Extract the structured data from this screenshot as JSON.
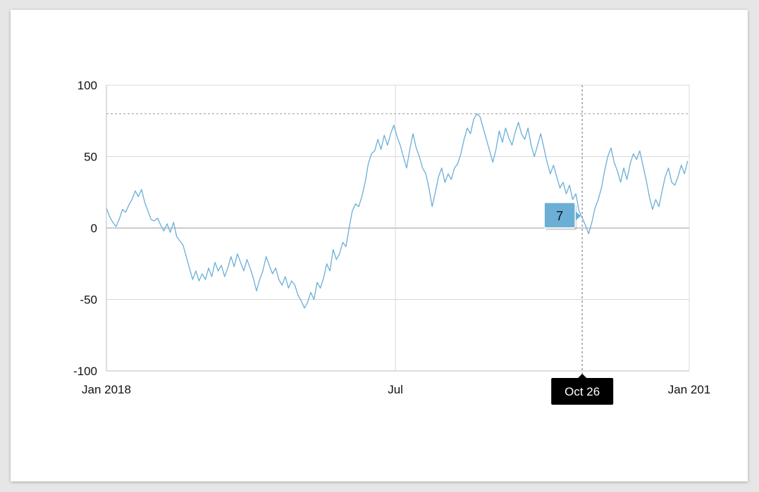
{
  "chart_data": {
    "type": "line",
    "title": "",
    "xlabel": "",
    "ylabel": "",
    "xlim": [
      "2018-01-01",
      "2019-01-01"
    ],
    "ylim": [
      -100,
      100
    ],
    "y_ticks": [
      "100",
      "50",
      "0",
      "-50",
      "-100"
    ],
    "x_ticks": [
      {
        "date": "2018-01-01",
        "label": "Jan 2018"
      },
      {
        "date": "2018-07-01",
        "label": "Jul"
      },
      {
        "date": "2019-01-01",
        "label": "Jan 201"
      }
    ],
    "grid": true,
    "reference_line": {
      "y": 80,
      "style": "dashed"
    },
    "crosshair": {
      "date": "2018-10-26",
      "x_label": "Oct 26",
      "value": 7,
      "value_label": "7"
    },
    "series": [
      {
        "color": "#6baed6",
        "points": [
          [
            "2018-01-01",
            14
          ],
          [
            "2018-01-03",
            8
          ],
          [
            "2018-01-05",
            4
          ],
          [
            "2018-01-07",
            1
          ],
          [
            "2018-01-09",
            6
          ],
          [
            "2018-01-11",
            13
          ],
          [
            "2018-01-13",
            11
          ],
          [
            "2018-01-15",
            16
          ],
          [
            "2018-01-17",
            20
          ],
          [
            "2018-01-19",
            26
          ],
          [
            "2018-01-21",
            22
          ],
          [
            "2018-01-23",
            27
          ],
          [
            "2018-01-25",
            18
          ],
          [
            "2018-01-27",
            12
          ],
          [
            "2018-01-29",
            6
          ],
          [
            "2018-01-31",
            5
          ],
          [
            "2018-02-02",
            7
          ],
          [
            "2018-02-04",
            2
          ],
          [
            "2018-02-06",
            -2
          ],
          [
            "2018-02-08",
            3
          ],
          [
            "2018-02-10",
            -3
          ],
          [
            "2018-02-12",
            4
          ],
          [
            "2018-02-14",
            -6
          ],
          [
            "2018-02-16",
            -9
          ],
          [
            "2018-02-18",
            -12
          ],
          [
            "2018-02-20",
            -20
          ],
          [
            "2018-02-22",
            -28
          ],
          [
            "2018-02-24",
            -36
          ],
          [
            "2018-02-26",
            -30
          ],
          [
            "2018-02-28",
            -37
          ],
          [
            "2018-03-02",
            -32
          ],
          [
            "2018-03-04",
            -36
          ],
          [
            "2018-03-06",
            -28
          ],
          [
            "2018-03-08",
            -34
          ],
          [
            "2018-03-10",
            -24
          ],
          [
            "2018-03-12",
            -30
          ],
          [
            "2018-03-14",
            -26
          ],
          [
            "2018-03-16",
            -34
          ],
          [
            "2018-03-18",
            -28
          ],
          [
            "2018-03-20",
            -20
          ],
          [
            "2018-03-22",
            -27
          ],
          [
            "2018-03-24",
            -18
          ],
          [
            "2018-03-26",
            -24
          ],
          [
            "2018-03-28",
            -30
          ],
          [
            "2018-03-30",
            -22
          ],
          [
            "2018-04-01",
            -28
          ],
          [
            "2018-04-03",
            -35
          ],
          [
            "2018-04-05",
            -44
          ],
          [
            "2018-04-07",
            -36
          ],
          [
            "2018-04-09",
            -30
          ],
          [
            "2018-04-11",
            -20
          ],
          [
            "2018-04-13",
            -26
          ],
          [
            "2018-04-15",
            -32
          ],
          [
            "2018-04-17",
            -28
          ],
          [
            "2018-04-19",
            -36
          ],
          [
            "2018-04-21",
            -40
          ],
          [
            "2018-04-23",
            -34
          ],
          [
            "2018-04-25",
            -42
          ],
          [
            "2018-04-27",
            -37
          ],
          [
            "2018-04-29",
            -40
          ],
          [
            "2018-05-01",
            -47
          ],
          [
            "2018-05-03",
            -51
          ],
          [
            "2018-05-05",
            -56
          ],
          [
            "2018-05-07",
            -52
          ],
          [
            "2018-05-09",
            -45
          ],
          [
            "2018-05-11",
            -50
          ],
          [
            "2018-05-13",
            -38
          ],
          [
            "2018-05-15",
            -42
          ],
          [
            "2018-05-17",
            -35
          ],
          [
            "2018-05-19",
            -25
          ],
          [
            "2018-05-21",
            -30
          ],
          [
            "2018-05-23",
            -15
          ],
          [
            "2018-05-25",
            -22
          ],
          [
            "2018-05-27",
            -18
          ],
          [
            "2018-05-29",
            -10
          ],
          [
            "2018-05-31",
            -13
          ],
          [
            "2018-06-02",
            0
          ],
          [
            "2018-06-04",
            12
          ],
          [
            "2018-06-06",
            17
          ],
          [
            "2018-06-08",
            15
          ],
          [
            "2018-06-10",
            22
          ],
          [
            "2018-06-12",
            32
          ],
          [
            "2018-06-14",
            45
          ],
          [
            "2018-06-16",
            52
          ],
          [
            "2018-06-18",
            54
          ],
          [
            "2018-06-20",
            62
          ],
          [
            "2018-06-22",
            55
          ],
          [
            "2018-06-24",
            65
          ],
          [
            "2018-06-26",
            58
          ],
          [
            "2018-06-28",
            66
          ],
          [
            "2018-06-30",
            72
          ],
          [
            "2018-07-02",
            64
          ],
          [
            "2018-07-04",
            58
          ],
          [
            "2018-07-06",
            50
          ],
          [
            "2018-07-08",
            42
          ],
          [
            "2018-07-10",
            55
          ],
          [
            "2018-07-12",
            66
          ],
          [
            "2018-07-14",
            56
          ],
          [
            "2018-07-16",
            50
          ],
          [
            "2018-07-18",
            42
          ],
          [
            "2018-07-20",
            38
          ],
          [
            "2018-07-22",
            28
          ],
          [
            "2018-07-24",
            15
          ],
          [
            "2018-07-26",
            25
          ],
          [
            "2018-07-28",
            36
          ],
          [
            "2018-07-30",
            42
          ],
          [
            "2018-08-01",
            32
          ],
          [
            "2018-08-03",
            38
          ],
          [
            "2018-08-05",
            34
          ],
          [
            "2018-08-07",
            42
          ],
          [
            "2018-08-09",
            45
          ],
          [
            "2018-08-11",
            52
          ],
          [
            "2018-08-13",
            62
          ],
          [
            "2018-08-15",
            70
          ],
          [
            "2018-08-17",
            66
          ],
          [
            "2018-08-19",
            76
          ],
          [
            "2018-08-21",
            80
          ],
          [
            "2018-08-23",
            78
          ],
          [
            "2018-08-25",
            70
          ],
          [
            "2018-08-27",
            62
          ],
          [
            "2018-08-29",
            54
          ],
          [
            "2018-08-31",
            46
          ],
          [
            "2018-09-02",
            55
          ],
          [
            "2018-09-04",
            68
          ],
          [
            "2018-09-06",
            60
          ],
          [
            "2018-09-08",
            70
          ],
          [
            "2018-09-10",
            63
          ],
          [
            "2018-09-12",
            58
          ],
          [
            "2018-09-14",
            67
          ],
          [
            "2018-09-16",
            74
          ],
          [
            "2018-09-18",
            66
          ],
          [
            "2018-09-20",
            62
          ],
          [
            "2018-09-22",
            70
          ],
          [
            "2018-09-24",
            58
          ],
          [
            "2018-09-26",
            50
          ],
          [
            "2018-09-28",
            58
          ],
          [
            "2018-09-30",
            66
          ],
          [
            "2018-10-02",
            56
          ],
          [
            "2018-10-04",
            46
          ],
          [
            "2018-10-06",
            38
          ],
          [
            "2018-10-08",
            44
          ],
          [
            "2018-10-10",
            36
          ],
          [
            "2018-10-12",
            28
          ],
          [
            "2018-10-14",
            32
          ],
          [
            "2018-10-16",
            24
          ],
          [
            "2018-10-18",
            30
          ],
          [
            "2018-10-20",
            20
          ],
          [
            "2018-10-22",
            24
          ],
          [
            "2018-10-24",
            12
          ],
          [
            "2018-10-26",
            7
          ],
          [
            "2018-10-28",
            2
          ],
          [
            "2018-10-30",
            -4
          ],
          [
            "2018-11-01",
            4
          ],
          [
            "2018-11-03",
            14
          ],
          [
            "2018-11-05",
            20
          ],
          [
            "2018-11-07",
            28
          ],
          [
            "2018-11-09",
            40
          ],
          [
            "2018-11-11",
            50
          ],
          [
            "2018-11-13",
            56
          ],
          [
            "2018-11-15",
            46
          ],
          [
            "2018-11-17",
            40
          ],
          [
            "2018-11-19",
            32
          ],
          [
            "2018-11-21",
            42
          ],
          [
            "2018-11-23",
            34
          ],
          [
            "2018-11-25",
            45
          ],
          [
            "2018-11-27",
            52
          ],
          [
            "2018-11-29",
            48
          ],
          [
            "2018-12-01",
            54
          ],
          [
            "2018-12-03",
            44
          ],
          [
            "2018-12-05",
            34
          ],
          [
            "2018-12-07",
            22
          ],
          [
            "2018-12-09",
            13
          ],
          [
            "2018-12-11",
            20
          ],
          [
            "2018-12-13",
            15
          ],
          [
            "2018-12-15",
            26
          ],
          [
            "2018-12-17",
            36
          ],
          [
            "2018-12-19",
            42
          ],
          [
            "2018-12-21",
            32
          ],
          [
            "2018-12-23",
            30
          ],
          [
            "2018-12-25",
            36
          ],
          [
            "2018-12-27",
            44
          ],
          [
            "2018-12-29",
            38
          ],
          [
            "2018-12-31",
            47
          ]
        ]
      }
    ]
  }
}
